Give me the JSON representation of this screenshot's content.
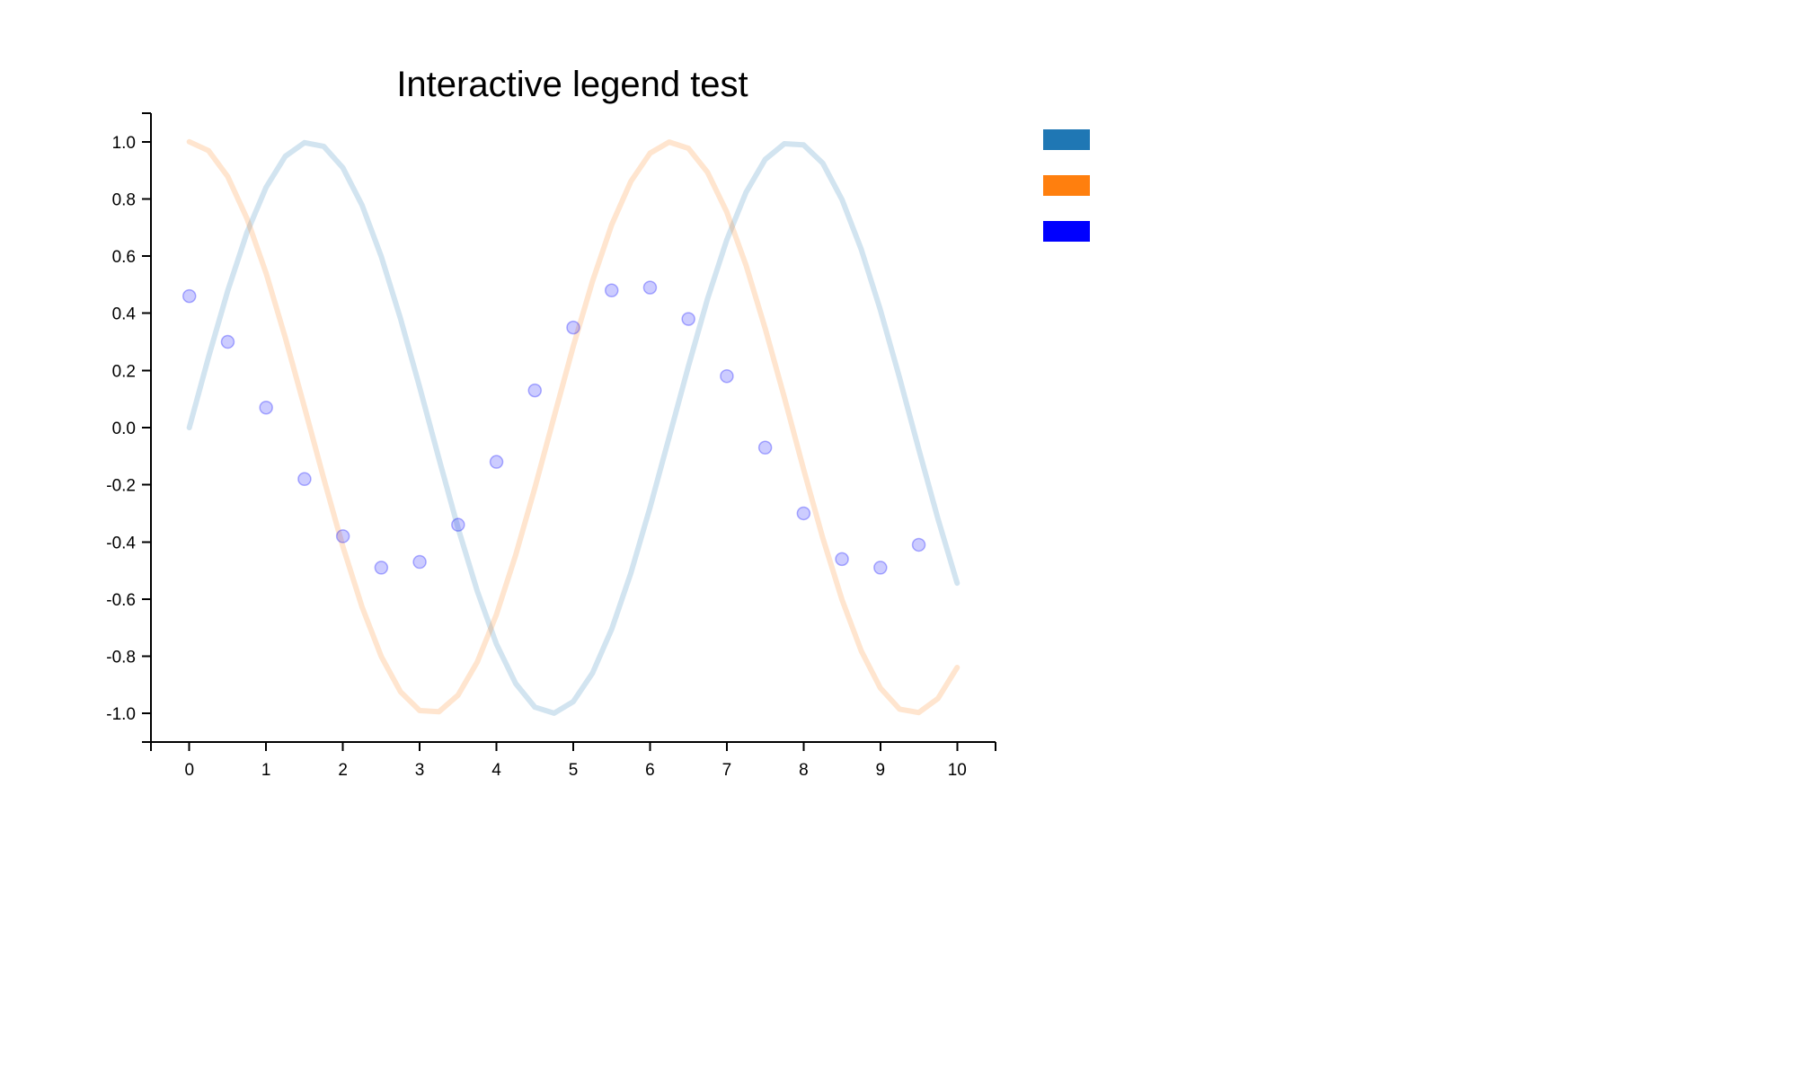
{
  "chart_data": {
    "type": "line",
    "title": "Interactive legend test",
    "xlabel": "",
    "ylabel": "",
    "xlim": [
      -0.5,
      10.5
    ],
    "ylim": [
      -1.1,
      1.1
    ],
    "x_ticks": [
      0,
      1,
      2,
      3,
      4,
      5,
      6,
      7,
      8,
      9,
      10
    ],
    "x_tick_labels": [
      "0",
      "1",
      "2",
      "3",
      "4",
      "5",
      "6",
      "7",
      "8",
      "9",
      "10"
    ],
    "y_ticks": [
      1.0,
      0.8,
      0.6,
      0.4,
      0.2,
      0.0,
      -0.2,
      -0.4,
      -0.6,
      -0.8,
      -1.0
    ],
    "y_tick_labels": [
      "1.0",
      "0.8",
      "0.6",
      "0.4",
      "0.2",
      "0.0",
      "-0.2",
      "-0.4",
      "-0.6",
      "-0.8",
      "-1.0"
    ],
    "grid": false,
    "legend_position": "top-right",
    "series": [
      {
        "kind": "line",
        "color": "#1f77b4",
        "opacity": 0.2,
        "x": [
          0,
          0.25,
          0.5,
          0.75,
          1,
          1.25,
          1.5,
          1.75,
          2,
          2.25,
          2.5,
          2.75,
          3,
          3.25,
          3.5,
          3.75,
          4,
          4.25,
          4.5,
          4.75,
          5,
          5.25,
          5.5,
          5.75,
          6,
          6.25,
          6.5,
          6.75,
          7,
          7.25,
          7.5,
          7.75,
          8,
          8.25,
          8.5,
          8.75,
          9,
          9.25,
          9.5,
          9.75,
          10
        ],
        "y": [
          0.0,
          0.247,
          0.479,
          0.682,
          0.841,
          0.949,
          0.997,
          0.984,
          0.909,
          0.778,
          0.598,
          0.382,
          0.141,
          -0.108,
          -0.351,
          -0.572,
          -0.757,
          -0.895,
          -0.978,
          -0.999,
          -0.959,
          -0.859,
          -0.706,
          -0.509,
          -0.279,
          -0.033,
          0.215,
          0.451,
          0.657,
          0.823,
          0.938,
          0.993,
          0.989,
          0.925,
          0.798,
          0.624,
          0.412,
          0.174,
          -0.075,
          -0.319,
          -0.544
        ]
      },
      {
        "kind": "line",
        "color": "#ff7f0e",
        "opacity": 0.2,
        "x": [
          0,
          0.25,
          0.5,
          0.75,
          1,
          1.25,
          1.5,
          1.75,
          2,
          2.25,
          2.5,
          2.75,
          3,
          3.25,
          3.5,
          3.75,
          4,
          4.25,
          4.5,
          4.75,
          5,
          5.25,
          5.5,
          5.75,
          6,
          6.25,
          6.5,
          6.75,
          7,
          7.25,
          7.5,
          7.75,
          8,
          8.25,
          8.5,
          8.75,
          9,
          9.25,
          9.5,
          9.75,
          10
        ],
        "y": [
          1.0,
          0.969,
          0.878,
          0.732,
          0.54,
          0.315,
          0.071,
          -0.178,
          -0.416,
          -0.628,
          -0.801,
          -0.924,
          -0.99,
          -0.994,
          -0.936,
          -0.82,
          -0.654,
          -0.446,
          -0.211,
          0.037,
          0.284,
          0.512,
          0.709,
          0.861,
          0.96,
          0.999,
          0.977,
          0.893,
          0.754,
          0.568,
          0.347,
          0.105,
          -0.146,
          -0.386,
          -0.602,
          -0.781,
          -0.911,
          -0.985,
          -0.997,
          -0.948,
          -0.839
        ]
      },
      {
        "kind": "scatter",
        "color": "#0000ff",
        "opacity": 0.2,
        "x": [
          0,
          0.5,
          1.0,
          1.5,
          2.0,
          2.5,
          3.0,
          3.5,
          4.0,
          4.5,
          5.0,
          5.5,
          6.0,
          6.5,
          7.0,
          7.5,
          8.0,
          8.5,
          9.0,
          9.5
        ],
        "y": [
          0.46,
          0.3,
          0.07,
          -0.18,
          -0.38,
          -0.49,
          -0.47,
          -0.34,
          -0.12,
          0.13,
          0.35,
          0.48,
          0.49,
          0.38,
          0.18,
          -0.07,
          -0.3,
          -0.46,
          -0.49,
          -0.41
        ]
      }
    ]
  }
}
